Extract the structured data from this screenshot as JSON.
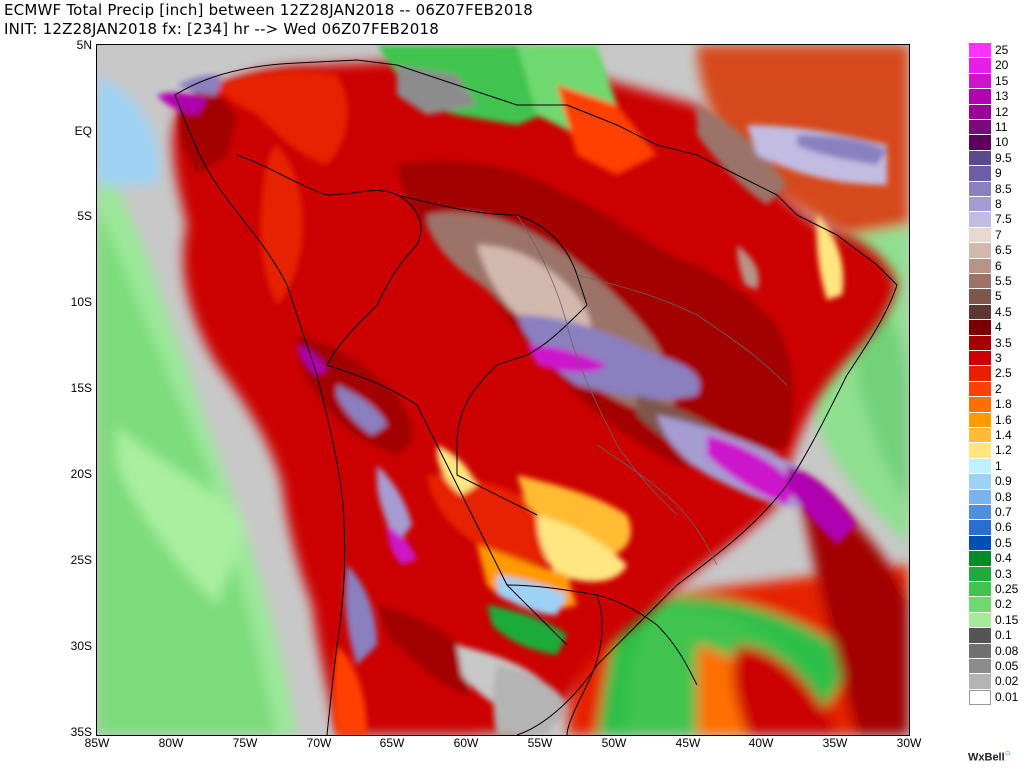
{
  "header": {
    "title": "ECMWF Total Precip [inch] between 12Z28JAN2018 -- 06Z07FEB2018",
    "subtitle": "INIT: 12Z28JAN2018 fx: [234] hr --> Wed 06Z07FEB2018"
  },
  "map": {
    "lat_labels": [
      "5N",
      "EQ",
      "5S",
      "10S",
      "15S",
      "20S",
      "25S",
      "30S",
      "35S"
    ],
    "lon_labels": [
      "85W",
      "80W",
      "75W",
      "70W",
      "65W",
      "60W",
      "55W",
      "50W",
      "45W",
      "40W",
      "35W",
      "30W"
    ],
    "lat_range_deg": [
      -35,
      5
    ],
    "lon_range_deg": [
      -85,
      -30
    ],
    "variable": "Total Precip [inch]"
  },
  "legend": {
    "items": [
      {
        "label": "25",
        "color": "#ff33ff"
      },
      {
        "label": "20",
        "color": "#e61fe6"
      },
      {
        "label": "15",
        "color": "#cc14cc"
      },
      {
        "label": "13",
        "color": "#b000b0"
      },
      {
        "label": "12",
        "color": "#990099"
      },
      {
        "label": "11",
        "color": "#7a0a7a"
      },
      {
        "label": "10",
        "color": "#5c005c"
      },
      {
        "label": "9.5",
        "color": "#5a4a8c"
      },
      {
        "label": "9",
        "color": "#6e5ea8"
      },
      {
        "label": "8.5",
        "color": "#8a7fbf"
      },
      {
        "label": "8",
        "color": "#a59cd1"
      },
      {
        "label": "7.5",
        "color": "#c2bce2"
      },
      {
        "label": "7",
        "color": "#e8d8d0"
      },
      {
        "label": "6.5",
        "color": "#d2b8ad"
      },
      {
        "label": "6",
        "color": "#b89488"
      },
      {
        "label": "5.5",
        "color": "#9c7368"
      },
      {
        "label": "5",
        "color": "#7e564c"
      },
      {
        "label": "4.5",
        "color": "#5e3830"
      },
      {
        "label": "4",
        "color": "#7a0000"
      },
      {
        "label": "3.5",
        "color": "#a30000"
      },
      {
        "label": "3",
        "color": "#cc0000"
      },
      {
        "label": "2.5",
        "color": "#e62000"
      },
      {
        "label": "2",
        "color": "#ff4000"
      },
      {
        "label": "1.8",
        "color": "#ff7000"
      },
      {
        "label": "1.6",
        "color": "#ff9a00"
      },
      {
        "label": "1.4",
        "color": "#ffbb33"
      },
      {
        "label": "1.2",
        "color": "#ffe680"
      },
      {
        "label": "1",
        "color": "#bff0ff"
      },
      {
        "label": "0.9",
        "color": "#9ed2f5"
      },
      {
        "label": "0.8",
        "color": "#7ab4ee"
      },
      {
        "label": "0.7",
        "color": "#4f8fe0"
      },
      {
        "label": "0.6",
        "color": "#2a6fd0"
      },
      {
        "label": "0.5",
        "color": "#0050b0"
      },
      {
        "label": "0.4",
        "color": "#008c28"
      },
      {
        "label": "0.3",
        "color": "#1fab3a"
      },
      {
        "label": "0.25",
        "color": "#3fc44f"
      },
      {
        "label": "0.2",
        "color": "#6fd86f"
      },
      {
        "label": "0.15",
        "color": "#a5eb9a"
      },
      {
        "label": "0.1",
        "color": "#555555"
      },
      {
        "label": "0.08",
        "color": "#707070"
      },
      {
        "label": "0.05",
        "color": "#8c8c8c"
      },
      {
        "label": "0.02",
        "color": "#b4b4b4"
      },
      {
        "label": "0.01",
        "color": "#ffffff"
      }
    ]
  },
  "credit": "WxBell"
}
